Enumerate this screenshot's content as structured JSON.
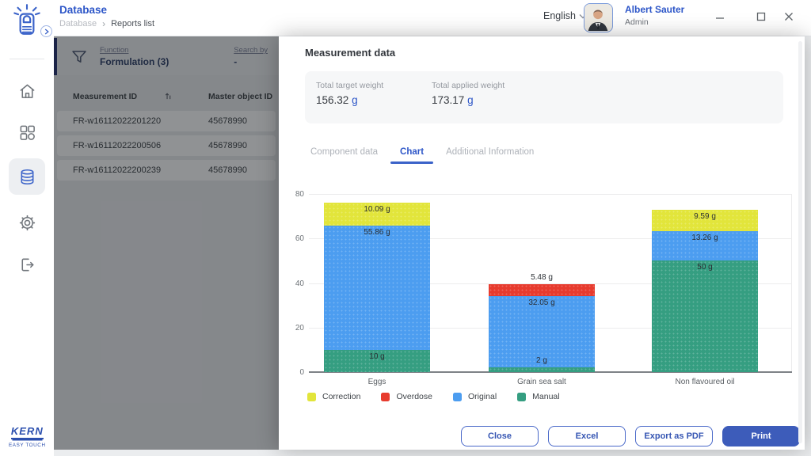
{
  "topbar": {
    "title": "Database",
    "breadcrumb": {
      "parent": "Database",
      "separator": "›",
      "current": "Reports list"
    },
    "language": {
      "label": "English"
    },
    "user": {
      "name": "Albert Sauter",
      "role": "Admin"
    },
    "window_icons": [
      "minimize-icon",
      "maximize-icon",
      "close-icon"
    ]
  },
  "sidebar": {
    "icons": [
      "home-icon",
      "apps-icon",
      "database-icon",
      "settings-icon",
      "logout-icon"
    ],
    "active_icon": "database-icon",
    "brand": {
      "name": "KERN",
      "sub": "EASY TOUCH"
    }
  },
  "filter": {
    "left_label": "Function",
    "left_value": "Formulation (3)",
    "right_label": "Search by",
    "right_value": "-"
  },
  "table": {
    "columns": [
      "Measurement ID",
      "Master object ID"
    ],
    "rows": [
      [
        "FR-w16112022201220",
        "45678990"
      ],
      [
        "FR-w16112022200506",
        "45678990"
      ],
      [
        "FR-w16112022200239",
        "45678990"
      ]
    ]
  },
  "modal": {
    "title": "Measurement data",
    "summary": [
      {
        "label": "Total target weight",
        "value": "156.32",
        "unit": "g"
      },
      {
        "label": "Total applied weight",
        "value": "173.17",
        "unit": "g"
      }
    ],
    "tabs": [
      {
        "label": "Component data",
        "active": false
      },
      {
        "label": "Chart",
        "active": true
      },
      {
        "label": "Additional Information",
        "active": false
      }
    ],
    "buttons": [
      {
        "label": "Close",
        "variant": "outline"
      },
      {
        "label": "Excel",
        "variant": "outline"
      },
      {
        "label": "Export as PDF",
        "variant": "outline"
      },
      {
        "label": "Print",
        "variant": "primary"
      }
    ]
  },
  "chart_data": {
    "type": "bar",
    "stacked": true,
    "categories": [
      "Eggs",
      "Grain sea salt",
      "Non flavoured oil"
    ],
    "series": [
      {
        "name": "Manual",
        "color": "#359e81",
        "values": [
          10,
          2,
          50
        ],
        "labels": [
          "10 g",
          "2 g",
          "50 g"
        ]
      },
      {
        "name": "Original",
        "color": "#4c9df0",
        "values": [
          55.86,
          32.05,
          13.26
        ],
        "labels": [
          "55.86 g",
          "32.05 g",
          "13.26 g"
        ]
      },
      {
        "name": "Overdose",
        "color": "#e73b2e",
        "values": [
          0,
          5.48,
          0
        ],
        "labels": [
          "",
          "5.48 g",
          ""
        ]
      },
      {
        "name": "Correction",
        "color": "#e2e53b",
        "values": [
          10.09,
          0,
          9.59
        ],
        "labels": [
          "10.09 g",
          "",
          "9.59 g"
        ]
      }
    ],
    "legend": [
      {
        "label": "Correction",
        "color": "#e2e53b"
      },
      {
        "label": "Overdose",
        "color": "#e73b2e"
      },
      {
        "label": "Original",
        "color": "#4c9df0"
      },
      {
        "label": "Manual",
        "color": "#359e81"
      }
    ],
    "ylim": [
      0,
      80
    ],
    "yticks": [
      0,
      20,
      40,
      60,
      80
    ],
    "grid": true,
    "legend_position": "bottom",
    "title": "",
    "xlabel": "",
    "ylabel": ""
  },
  "colors": {
    "accent": "#2d56c8",
    "primary_button": "#3d5cba",
    "overlay": "rgba(20,23,28,0.47)"
  }
}
